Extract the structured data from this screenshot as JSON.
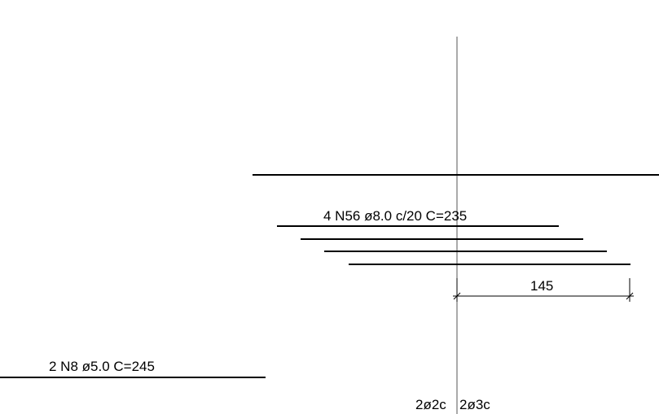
{
  "drawing": {
    "line_color": "#000000",
    "axis_color": "#555555",
    "rebar_top_label": "4 N56 ø8.0 c/20  C=235",
    "rebar_bottom_label": "2 N8 ø5.0  C=245",
    "dimension_value": "145",
    "axis_label_left": "2ø2c",
    "axis_label_right": "2ø3c"
  }
}
